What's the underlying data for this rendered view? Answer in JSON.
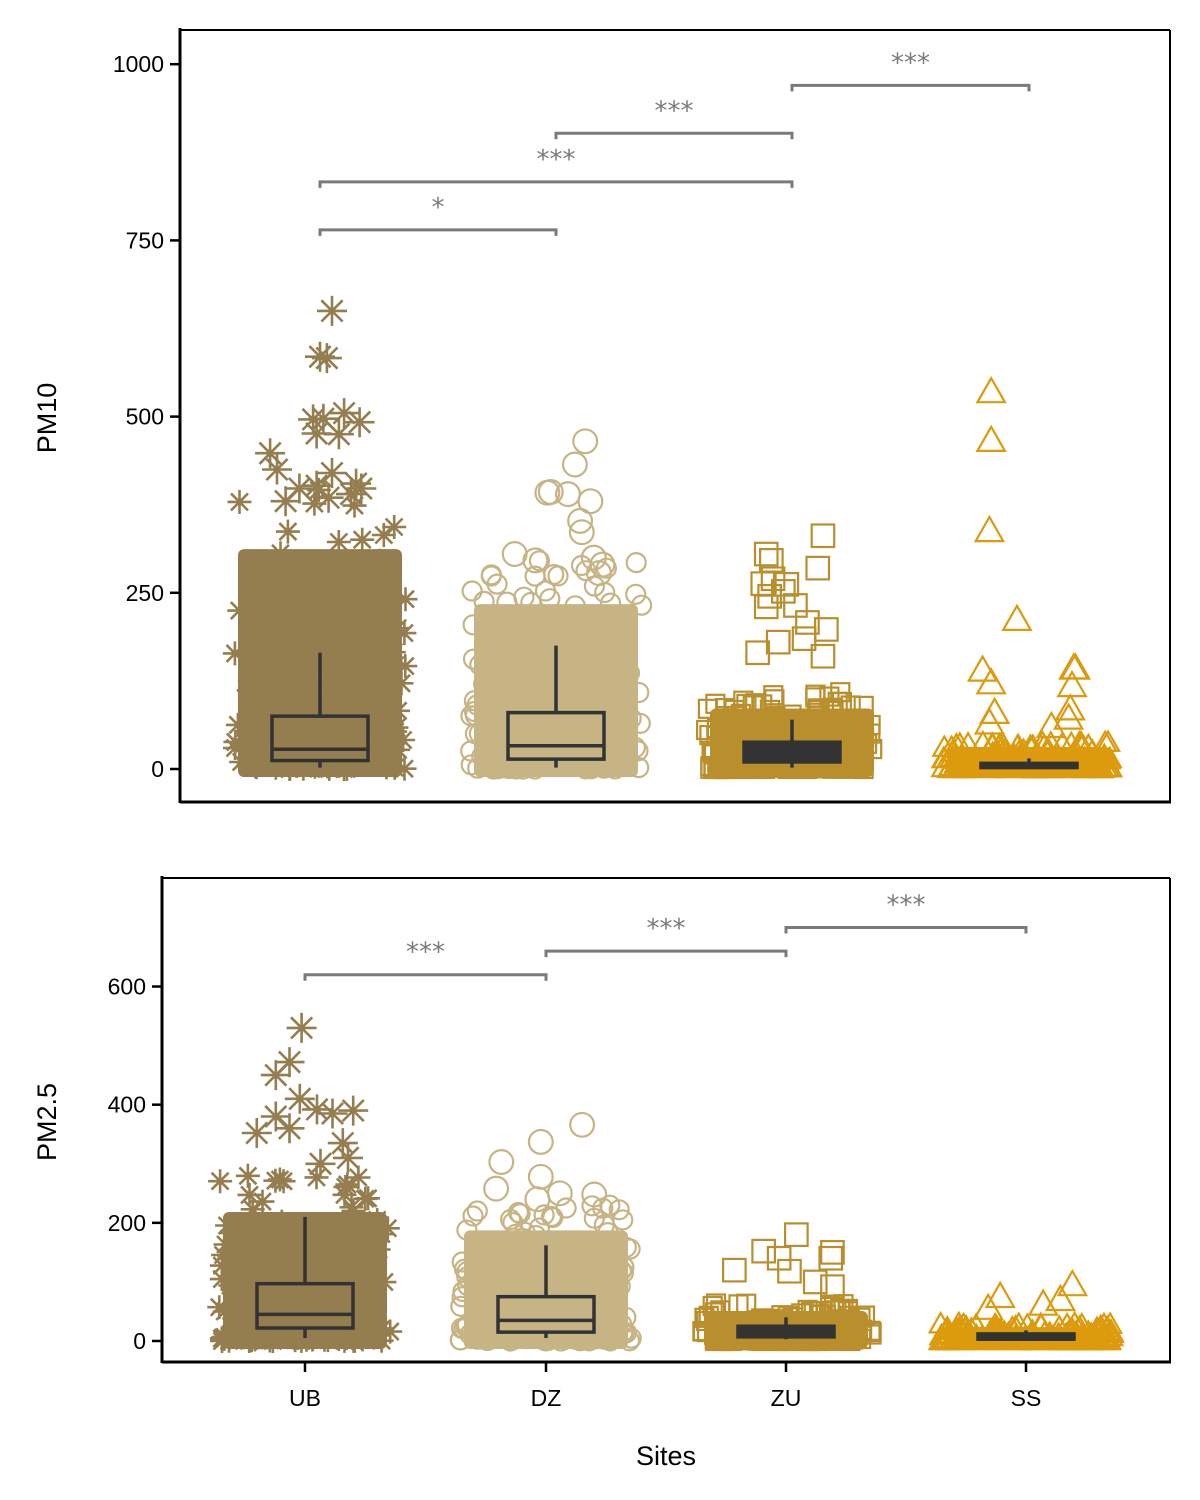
{
  "xlabel": "Sites",
  "colors": {
    "UB": "#947d4f",
    "DZ": "#c6b485",
    "ZU": "#b98f2d",
    "SS": "#dc9b0d",
    "box_edge": "#333333",
    "significance": "#7a7a7a"
  },
  "chart_data": [
    {
      "type": "box",
      "overlay": "jitter-scatter",
      "xlabel": "",
      "ylabel": "PM10",
      "categories": [
        "UB",
        "DZ",
        "ZU",
        "SS"
      ],
      "markers": [
        "star",
        "circle",
        "square",
        "triangle"
      ],
      "ylim": [
        -48,
        1050
      ],
      "yticks": [
        0,
        250,
        500,
        750,
        1000
      ],
      "grid": false,
      "boxes": [
        {
          "site": "UB",
          "min": 2,
          "q1": 12,
          "median": 28,
          "q3": 75,
          "max": 165,
          "point_max": 400
        },
        {
          "site": "DZ",
          "min": 2,
          "q1": 14,
          "median": 33,
          "q3": 80,
          "max": 175,
          "point_max": 300
        },
        {
          "site": "ZU",
          "min": 2,
          "q1": 10,
          "median": 28,
          "q3": 38,
          "max": 70,
          "point_max": 110
        },
        {
          "site": "SS",
          "min": 1,
          "q1": 2,
          "median": 5,
          "q3": 8,
          "max": 15,
          "point_max": 40
        }
      ],
      "outliers": [
        {
          "site": "UB",
          "points": [
            [
              0.07,
              650
            ],
            [
              0.0,
              585
            ],
            [
              0.04,
              583
            ],
            [
              -0.04,
              496
            ],
            [
              0.02,
              497
            ],
            [
              0.14,
              505
            ],
            [
              0.23,
              492
            ],
            [
              -0.02,
              476
            ],
            [
              0.11,
              475
            ],
            [
              -0.29,
              448
            ],
            [
              -0.25,
              425
            ],
            [
              0.07,
              420
            ],
            [
              0.21,
              405
            ],
            [
              0.24,
              398
            ],
            [
              -0.12,
              398
            ],
            [
              -0.02,
              402
            ],
            [
              -0.2,
              380
            ],
            [
              0.18,
              390
            ],
            [
              0.05,
              385
            ]
          ]
        },
        {
          "site": "DZ",
          "points": [
            [
              0.17,
              465
            ],
            [
              0.11,
              432
            ],
            [
              -0.05,
              392
            ],
            [
              -0.03,
              393
            ],
            [
              0.07,
              390
            ],
            [
              0.2,
              380
            ],
            [
              0.14,
              352
            ],
            [
              0.15,
              336
            ],
            [
              -0.24,
              305
            ],
            [
              0.22,
              300
            ],
            [
              0.27,
              290
            ],
            [
              0.25,
              278
            ],
            [
              -0.12,
              296
            ]
          ]
        },
        {
          "site": "ZU",
          "points": [
            [
              0.18,
              331
            ],
            [
              -0.15,
              305
            ],
            [
              -0.12,
              296
            ],
            [
              0.15,
              285
            ],
            [
              -0.11,
              270
            ],
            [
              -0.03,
              262
            ],
            [
              -0.17,
              263
            ],
            [
              -0.13,
              245
            ],
            [
              -0.05,
              252
            ],
            [
              0.02,
              232
            ],
            [
              0.2,
              198
            ],
            [
              -0.15,
              230
            ],
            [
              0.09,
              208
            ],
            [
              0.07,
              185
            ],
            [
              0.18,
              160
            ],
            [
              -0.2,
              165
            ],
            [
              -0.08,
              180
            ]
          ]
        },
        {
          "site": "SS",
          "points": [
            [
              -0.22,
              535
            ],
            [
              -0.22,
              466
            ],
            [
              -0.23,
              338
            ],
            [
              -0.07,
              212
            ],
            [
              0.26,
              143
            ],
            [
              0.27,
              143
            ],
            [
              -0.27,
              140
            ],
            [
              -0.22,
              122
            ],
            [
              0.25,
              118
            ],
            [
              0.24,
              85
            ],
            [
              -0.2,
              80
            ],
            [
              0.23,
              72
            ],
            [
              -0.23,
              65
            ],
            [
              0.13,
              60
            ]
          ]
        }
      ],
      "comparisons": [
        {
          "from": "UB",
          "to": "DZ",
          "y": 765,
          "label": "*"
        },
        {
          "from": "UB",
          "to": "ZU",
          "y": 833,
          "label": "***"
        },
        {
          "from": "DZ",
          "to": "ZU",
          "y": 902,
          "label": "***"
        },
        {
          "from": "ZU",
          "to": "SS",
          "y": 970,
          "label": "***"
        }
      ]
    },
    {
      "type": "box",
      "overlay": "jitter-scatter",
      "xlabel": "Sites",
      "ylabel": "PM2.5",
      "categories": [
        "UB",
        "DZ",
        "ZU",
        "SS"
      ],
      "markers": [
        "star",
        "circle",
        "square",
        "triangle"
      ],
      "ylim": [
        -32,
        785
      ],
      "yticks": [
        0,
        200,
        400,
        600
      ],
      "grid": false,
      "boxes": [
        {
          "site": "UB",
          "min": 5,
          "q1": 22,
          "median": 45,
          "q3": 97,
          "max": 210,
          "point_max": 280
        },
        {
          "site": "DZ",
          "min": 5,
          "q1": 15,
          "median": 35,
          "q3": 75,
          "max": 162,
          "point_max": 240
        },
        {
          "site": "ZU",
          "min": 3,
          "q1": 7,
          "median": 15,
          "q3": 25,
          "max": 40,
          "point_max": 65
        },
        {
          "site": "SS",
          "min": 2,
          "q1": 3,
          "median": 7,
          "q3": 12,
          "max": 18,
          "point_max": 30
        }
      ],
      "outliers": [
        {
          "site": "UB",
          "points": [
            [
              -0.02,
              530
            ],
            [
              -0.09,
              472
            ],
            [
              -0.17,
              450
            ],
            [
              -0.03,
              410
            ],
            [
              0.07,
              392
            ],
            [
              0.28,
              390
            ],
            [
              0.16,
              385
            ],
            [
              -0.17,
              380
            ],
            [
              -0.28,
              352
            ],
            [
              -0.09,
              360
            ],
            [
              0.22,
              335
            ],
            [
              0.25,
              310
            ],
            [
              0.09,
              300
            ]
          ]
        },
        {
          "site": "DZ",
          "points": [
            [
              0.21,
              366
            ],
            [
              -0.03,
              337
            ],
            [
              -0.26,
              303
            ],
            [
              -0.03,
              278
            ],
            [
              -0.29,
              258
            ],
            [
              0.28,
              248
            ],
            [
              0.08,
              250
            ],
            [
              -0.05,
              240
            ]
          ]
        },
        {
          "site": "ZU",
          "points": [
            [
              0.06,
              180
            ],
            [
              0.27,
              150
            ],
            [
              -0.13,
              152
            ],
            [
              0.26,
              140
            ],
            [
              -0.04,
              140
            ],
            [
              0.02,
              118
            ],
            [
              -0.3,
              120
            ],
            [
              0.17,
              100
            ],
            [
              0.27,
              92
            ]
          ]
        },
        {
          "site": "SS",
          "points": [
            [
              0.27,
              95
            ],
            [
              0.2,
              70
            ],
            [
              -0.15,
              75
            ],
            [
              0.1,
              62
            ],
            [
              -0.22,
              55
            ]
          ]
        }
      ],
      "comparisons": [
        {
          "from": "UB",
          "to": "DZ",
          "y": 620,
          "label": "***"
        },
        {
          "from": "DZ",
          "to": "ZU",
          "y": 660,
          "label": "***"
        },
        {
          "from": "ZU",
          "to": "SS",
          "y": 700,
          "label": "***"
        }
      ]
    }
  ]
}
